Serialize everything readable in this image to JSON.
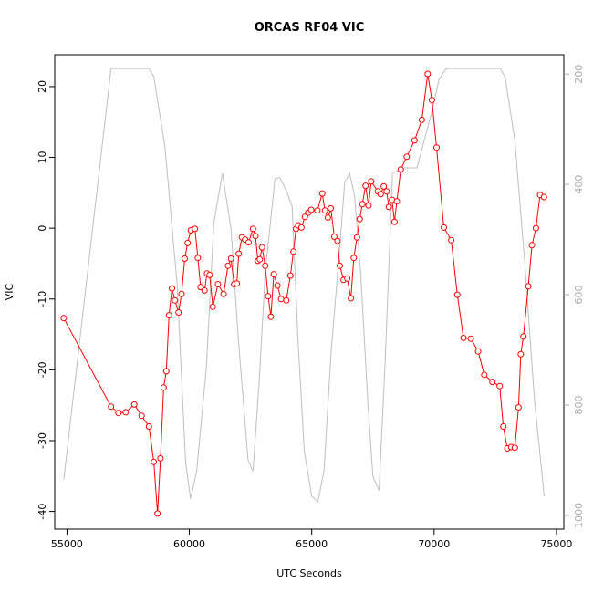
{
  "chart_data": {
    "type": "line",
    "title": "ORCAS RF04 VIC",
    "xlabel": "UTC Seconds",
    "ylabel": "VIC",
    "xlim": [
      54500,
      75300
    ],
    "ylim": [
      -42.5,
      24.5
    ],
    "y2lim": [
      1025,
      165
    ],
    "x_ticks": [
      55000,
      60000,
      65000,
      70000,
      75000
    ],
    "y_ticks": [
      -40,
      -30,
      -20,
      -10,
      0,
      10,
      20
    ],
    "y2_ticks": [
      200,
      400,
      600,
      800,
      1000
    ],
    "grid": false,
    "colors": {
      "primary": "#ff0000",
      "secondary": "#bebebe",
      "axis": "#000000",
      "secondary_axis": "#aaaaaa"
    },
    "series": [
      {
        "axis": "left",
        "style": "line-with-circles",
        "color": "#ff0000",
        "points": [
          [
            54870,
            -12.7
          ],
          [
            56800,
            -25.2
          ],
          [
            57100,
            -26.1
          ],
          [
            57400,
            -26.0
          ],
          [
            57750,
            -24.9
          ],
          [
            58050,
            -26.5
          ],
          [
            58350,
            -28.0
          ],
          [
            58550,
            -33.0
          ],
          [
            58700,
            -40.3
          ],
          [
            58820,
            -32.5
          ],
          [
            58950,
            -22.5
          ],
          [
            59060,
            -20.2
          ],
          [
            59170,
            -12.3
          ],
          [
            59290,
            -8.5
          ],
          [
            59410,
            -10.2
          ],
          [
            59560,
            -11.9
          ],
          [
            59680,
            -9.3
          ],
          [
            59810,
            -4.3
          ],
          [
            59930,
            -2.1
          ],
          [
            60060,
            -0.3
          ],
          [
            60230,
            -0.1
          ],
          [
            60350,
            -4.2
          ],
          [
            60460,
            -8.3
          ],
          [
            60620,
            -8.8
          ],
          [
            60720,
            -6.4
          ],
          [
            60830,
            -6.6
          ],
          [
            60960,
            -11.1
          ],
          [
            61170,
            -7.9
          ],
          [
            61400,
            -9.3
          ],
          [
            61580,
            -5.3
          ],
          [
            61700,
            -4.3
          ],
          [
            61830,
            -7.9
          ],
          [
            61940,
            -7.8
          ],
          [
            62020,
            -3.6
          ],
          [
            62150,
            -1.3
          ],
          [
            62280,
            -1.6
          ],
          [
            62420,
            -2.0
          ],
          [
            62600,
            -0.1
          ],
          [
            62700,
            -1.1
          ],
          [
            62800,
            -4.6
          ],
          [
            62880,
            -4.4
          ],
          [
            62970,
            -2.7
          ],
          [
            63100,
            -5.3
          ],
          [
            63220,
            -9.6
          ],
          [
            63330,
            -12.5
          ],
          [
            63450,
            -6.5
          ],
          [
            63600,
            -8.1
          ],
          [
            63750,
            -10.0
          ],
          [
            63960,
            -10.2
          ],
          [
            64130,
            -6.7
          ],
          [
            64250,
            -3.3
          ],
          [
            64360,
            -0.1
          ],
          [
            64450,
            0.4
          ],
          [
            64580,
            0.1
          ],
          [
            64720,
            1.6
          ],
          [
            64860,
            2.2
          ],
          [
            64980,
            2.6
          ],
          [
            65230,
            2.5
          ],
          [
            65430,
            4.9
          ],
          [
            65540,
            2.5
          ],
          [
            65660,
            1.5
          ],
          [
            65780,
            2.8
          ],
          [
            65920,
            -1.2
          ],
          [
            66050,
            -1.8
          ],
          [
            66150,
            -5.3
          ],
          [
            66300,
            -7.3
          ],
          [
            66450,
            -7.1
          ],
          [
            66600,
            -9.9
          ],
          [
            66720,
            -4.2
          ],
          [
            66850,
            -1.3
          ],
          [
            66960,
            1.3
          ],
          [
            67070,
            3.4
          ],
          [
            67200,
            6.0
          ],
          [
            67320,
            3.2
          ],
          [
            67430,
            6.6
          ],
          [
            67700,
            5.2
          ],
          [
            67820,
            4.8
          ],
          [
            67940,
            5.9
          ],
          [
            68060,
            5.2
          ],
          [
            68150,
            3.0
          ],
          [
            68280,
            4.0
          ],
          [
            68380,
            0.9
          ],
          [
            68480,
            3.8
          ],
          [
            68640,
            8.3
          ],
          [
            68880,
            10.1
          ],
          [
            69200,
            12.4
          ],
          [
            69500,
            15.3
          ],
          [
            69740,
            21.8
          ],
          [
            69910,
            18.1
          ],
          [
            70100,
            11.4
          ],
          [
            70400,
            0.1
          ],
          [
            70700,
            -1.7
          ],
          [
            70950,
            -9.4
          ],
          [
            71200,
            -15.5
          ],
          [
            71500,
            -15.6
          ],
          [
            71800,
            -17.4
          ],
          [
            72050,
            -20.7
          ],
          [
            72380,
            -21.7
          ],
          [
            72680,
            -22.3
          ],
          [
            72830,
            -28.0
          ],
          [
            72990,
            -31.1
          ],
          [
            73150,
            -30.9
          ],
          [
            73300,
            -31.0
          ],
          [
            73450,
            -25.3
          ],
          [
            73540,
            -17.8
          ],
          [
            73650,
            -15.3
          ],
          [
            73850,
            -8.2
          ],
          [
            74000,
            -2.4
          ],
          [
            74160,
            0.0
          ],
          [
            74330,
            4.7
          ],
          [
            74490,
            4.4
          ]
        ]
      },
      {
        "axis": "right",
        "style": "line",
        "color": "#bebebe",
        "points": [
          [
            54870,
            935
          ],
          [
            56800,
            190
          ],
          [
            58350,
            190
          ],
          [
            58550,
            205
          ],
          [
            59000,
            330
          ],
          [
            59500,
            580
          ],
          [
            59850,
            905
          ],
          [
            60050,
            970
          ],
          [
            60300,
            920
          ],
          [
            60700,
            730
          ],
          [
            61000,
            470
          ],
          [
            61350,
            380
          ],
          [
            61700,
            480
          ],
          [
            62000,
            680
          ],
          [
            62400,
            900
          ],
          [
            62600,
            920
          ],
          [
            62850,
            760
          ],
          [
            63100,
            560
          ],
          [
            63500,
            390
          ],
          [
            63700,
            388
          ],
          [
            63950,
            410
          ],
          [
            64200,
            440
          ],
          [
            64450,
            690
          ],
          [
            64700,
            885
          ],
          [
            65000,
            965
          ],
          [
            65250,
            975
          ],
          [
            65500,
            920
          ],
          [
            65800,
            700
          ],
          [
            66100,
            540
          ],
          [
            66350,
            395
          ],
          [
            66550,
            380
          ],
          [
            66750,
            420
          ],
          [
            67000,
            560
          ],
          [
            67300,
            800
          ],
          [
            67500,
            930
          ],
          [
            67750,
            955
          ],
          [
            68000,
            720
          ],
          [
            68300,
            380
          ],
          [
            68700,
            370
          ],
          [
            69300,
            370
          ],
          [
            69600,
            320
          ],
          [
            69900,
            270
          ],
          [
            70200,
            210
          ],
          [
            70500,
            190
          ],
          [
            72700,
            190
          ],
          [
            72900,
            205
          ],
          [
            73300,
            320
          ],
          [
            73700,
            540
          ],
          [
            74100,
            790
          ],
          [
            74500,
            965
          ]
        ]
      }
    ]
  }
}
